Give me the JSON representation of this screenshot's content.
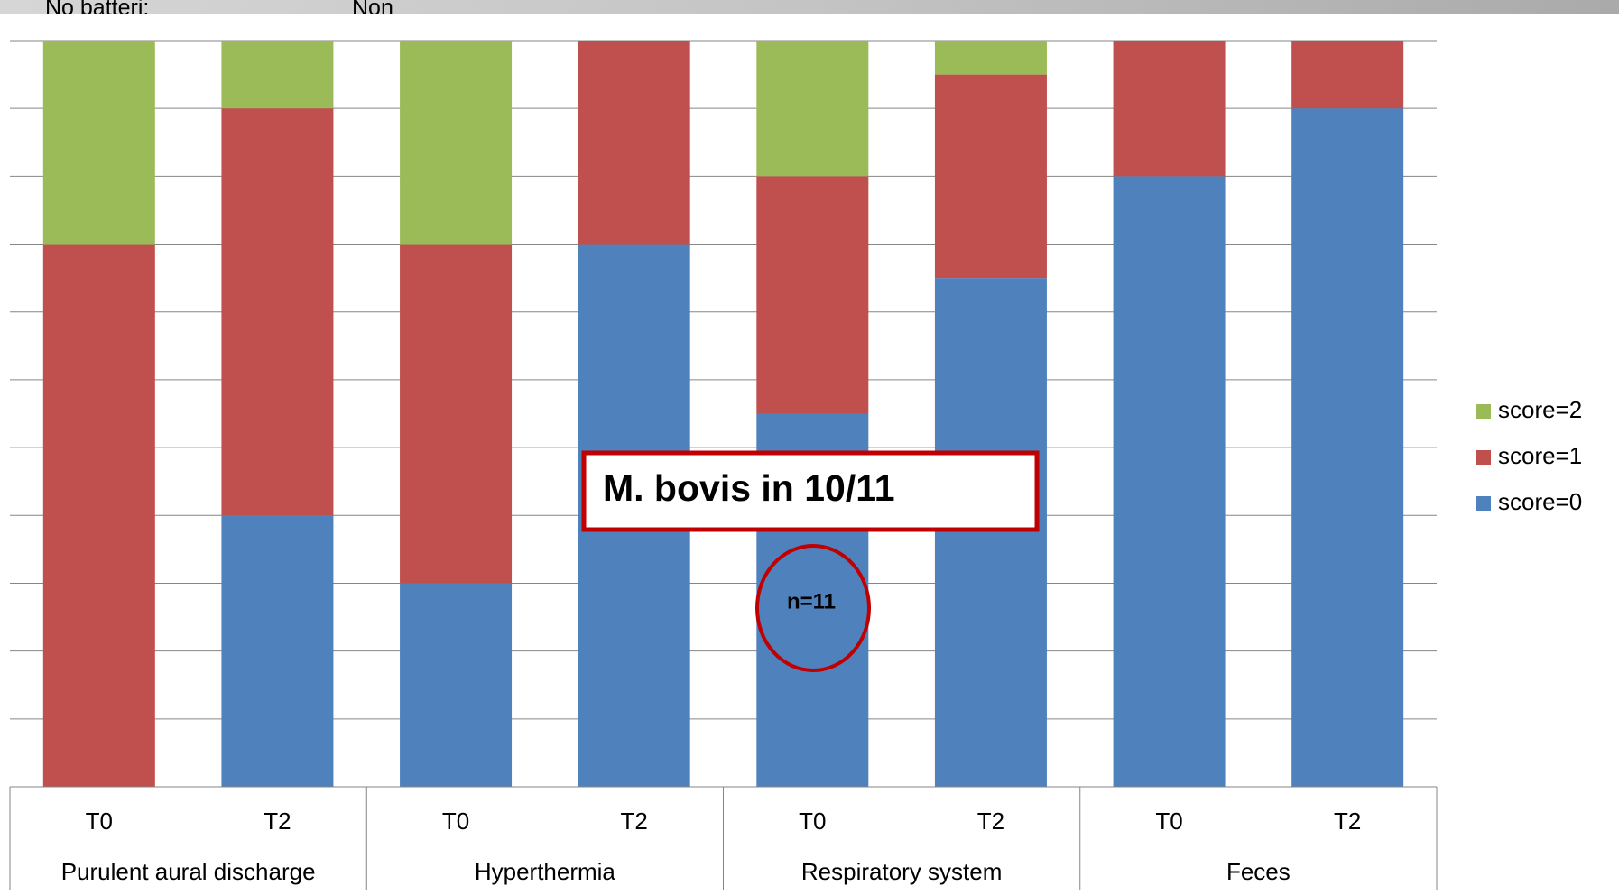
{
  "header": {
    "left": "No batteri:",
    "right": "Non"
  },
  "chart_data": {
    "type": "stacked_bar",
    "categories": [
      "T0",
      "T2",
      "T0",
      "T2",
      "T0",
      "T2",
      "T0",
      "T2"
    ],
    "groups": [
      "Purulent aural discharge",
      "Hyperthermia",
      "Respiratory system",
      "Feces"
    ],
    "series": [
      {
        "name": "score=0",
        "color": "#4f81bd",
        "values": [
          0,
          4,
          3,
          8,
          5.5,
          7.5,
          9,
          10
        ]
      },
      {
        "name": "score=1",
        "color": "#c0504d",
        "values": [
          8,
          6,
          5,
          3,
          3.5,
          3,
          2,
          1
        ]
      },
      {
        "name": "score=2",
        "color": "#9bbb59",
        "values": [
          3,
          1,
          3,
          0,
          2,
          0.5,
          0,
          0
        ]
      }
    ],
    "ylim": [
      0,
      11
    ],
    "yticks": [
      0,
      1,
      2,
      3,
      4,
      5,
      6,
      7,
      8,
      9,
      10,
      11
    ],
    "grid": true,
    "annotations": [
      "M. bovis in 10/11",
      "n=11"
    ]
  }
}
